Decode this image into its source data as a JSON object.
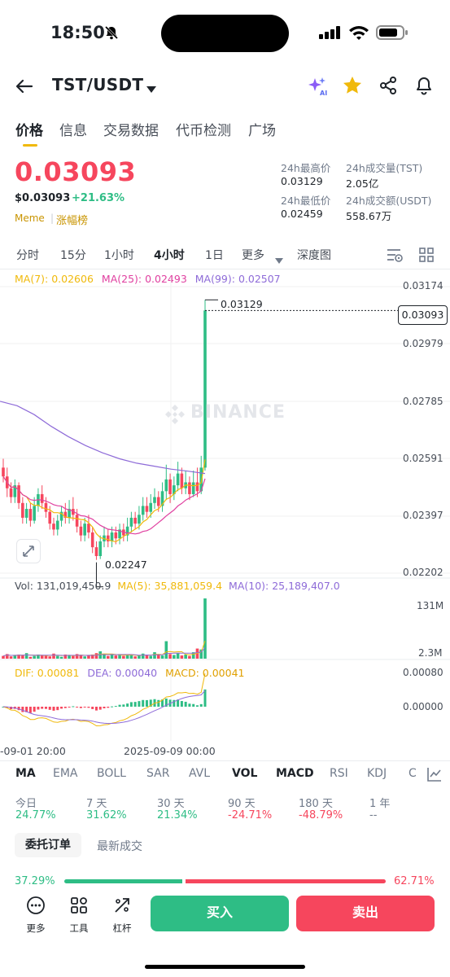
{
  "status_bar": {
    "time": "18:50"
  },
  "header": {
    "pair": "TST/USDT"
  },
  "tabs": [
    {
      "label": "价格"
    },
    {
      "label": "信息"
    },
    {
      "label": "交易数据"
    },
    {
      "label": "代币检测"
    },
    {
      "label": "广场"
    }
  ],
  "price": {
    "last": "0.03093",
    "usd": "$0.03093",
    "change": "+21.63%",
    "tag1": "Meme",
    "tag2": "涨幅榜"
  },
  "stats": {
    "high_label": "24h最高价",
    "high": "0.03129",
    "low_label": "24h最低价",
    "low": "0.02459",
    "vol_label": "24h成交量(TST)",
    "vol": "2.05亿",
    "amount_label": "24h成交额(USDT)",
    "amount": "558.67万"
  },
  "intervals": [
    {
      "label": "分时"
    },
    {
      "label": "15分"
    },
    {
      "label": "1小时"
    },
    {
      "label": "4小时"
    },
    {
      "label": "1日"
    },
    {
      "label": "更多"
    },
    {
      "label": "深度图"
    }
  ],
  "chart": {
    "ma7": "MA(7): 0.02606",
    "ma25": "MA(25): 0.02493",
    "ma99": "MA(99): 0.02507",
    "y_labels": [
      "0.03174",
      "0.02979",
      "0.02785",
      "0.02591",
      "0.02397",
      "0.02202"
    ],
    "current_price_tag": "0.03093",
    "high_marker": "0.03129",
    "low_marker": "0.02247",
    "watermark": "BINANCE",
    "vol_text": "Vol: 131,019,450.9",
    "vol_ma5": "MA(5): 35,881,059.4",
    "vol_ma10": "MA(10): 25,189,407.0",
    "vol_y_max": "131M",
    "vol_y_min": "2.3M",
    "dif": "DIF: 0.00081",
    "dea": "DEA: 0.00040",
    "macd": "MACD: 0.00041",
    "macd_y_max": "0.00080",
    "macd_y_zero": "0.00000",
    "x_labels": [
      "-09-01 20:00",
      "2025-09-09 00:00"
    ]
  },
  "indicators": [
    {
      "label": "MA"
    },
    {
      "label": "EMA"
    },
    {
      "label": "BOLL"
    },
    {
      "label": "SAR"
    },
    {
      "label": "AVL"
    },
    {
      "label": "VOL"
    },
    {
      "label": "MACD"
    },
    {
      "label": "RSI"
    },
    {
      "label": "KDJ"
    },
    {
      "label": "C"
    }
  ],
  "performance": [
    {
      "label": "今日",
      "value": "24.77%"
    },
    {
      "label": "7 天",
      "value": "31.62%"
    },
    {
      "label": "30 天",
      "value": "21.34%"
    },
    {
      "label": "90 天",
      "value": "-24.71%"
    },
    {
      "label": "180 天",
      "value": "-48.79%"
    },
    {
      "label": "1 年",
      "value": "--"
    }
  ],
  "order_tabs": {
    "active": "委托订单",
    "other": "最新成交"
  },
  "order_ratio": {
    "buy": "37.29%",
    "sell": "62.71%",
    "buy_fraction": 0.3729
  },
  "bottom_bar": {
    "more": "更多",
    "tools": "工具",
    "leverage": "杠杆",
    "buy": "买入",
    "sell": "卖出"
  },
  "colors": {
    "up": "#2ebd85",
    "down": "#f6465d",
    "accent": "#f0b90b"
  },
  "candles": [
    [
      0.0256,
      0.0253,
      0.0259,
      0.0251
    ],
    [
      0.0253,
      0.0249,
      0.0256,
      0.0246
    ],
    [
      0.0249,
      0.0246,
      0.0251,
      0.0244
    ],
    [
      0.0246,
      0.025,
      0.0252,
      0.0244
    ],
    [
      0.025,
      0.0244,
      0.0251,
      0.0242
    ],
    [
      0.0244,
      0.0239,
      0.0246,
      0.0237
    ],
    [
      0.0239,
      0.0242,
      0.0244,
      0.0237
    ],
    [
      0.0242,
      0.0238,
      0.0244,
      0.0236
    ],
    [
      0.0238,
      0.0243,
      0.0246,
      0.0237
    ],
    [
      0.0243,
      0.0247,
      0.0249,
      0.0241
    ],
    [
      0.0247,
      0.0244,
      0.025,
      0.0242
    ],
    [
      0.0244,
      0.0241,
      0.0246,
      0.0239
    ],
    [
      0.0241,
      0.0237,
      0.0243,
      0.0235
    ],
    [
      0.0237,
      0.0235,
      0.0239,
      0.0233
    ],
    [
      0.0235,
      0.0238,
      0.024,
      0.0233
    ],
    [
      0.0238,
      0.0241,
      0.0243,
      0.0236
    ],
    [
      0.0241,
      0.0239,
      0.0244,
      0.0237
    ],
    [
      0.0239,
      0.0242,
      0.0245,
      0.0237
    ],
    [
      0.0242,
      0.024,
      0.0246,
      0.0238
    ],
    [
      0.024,
      0.0236,
      0.0242,
      0.0234
    ],
    [
      0.0236,
      0.0233,
      0.0238,
      0.0231
    ],
    [
      0.0233,
      0.0237,
      0.0239,
      0.0231
    ],
    [
      0.0237,
      0.0234,
      0.024,
      0.0232
    ],
    [
      0.0234,
      0.0229,
      0.0236,
      0.0227
    ],
    [
      0.0229,
      0.0226,
      0.0231,
      0.02247
    ],
    [
      0.0226,
      0.0231,
      0.0233,
      0.0225
    ],
    [
      0.0231,
      0.0233,
      0.0236,
      0.0229
    ],
    [
      0.0233,
      0.0231,
      0.0235,
      0.0229
    ],
    [
      0.0231,
      0.0234,
      0.0236,
      0.0229
    ],
    [
      0.0234,
      0.0232,
      0.0236,
      0.023
    ],
    [
      0.0232,
      0.0235,
      0.0237,
      0.023
    ],
    [
      0.0235,
      0.0233,
      0.0237,
      0.0231
    ],
    [
      0.0233,
      0.0236,
      0.0239,
      0.0231
    ],
    [
      0.0236,
      0.0239,
      0.0241,
      0.0234
    ],
    [
      0.0239,
      0.0237,
      0.0241,
      0.0235
    ],
    [
      0.0237,
      0.024,
      0.0243,
      0.0235
    ],
    [
      0.024,
      0.0243,
      0.0246,
      0.0238
    ],
    [
      0.0243,
      0.0241,
      0.0246,
      0.0239
    ],
    [
      0.0241,
      0.0244,
      0.0247,
      0.0239
    ],
    [
      0.0244,
      0.0246,
      0.0249,
      0.0242
    ],
    [
      0.0246,
      0.0243,
      0.0248,
      0.0241
    ],
    [
      0.0243,
      0.0248,
      0.0251,
      0.0241
    ],
    [
      0.0248,
      0.0252,
      0.0257,
      0.0245
    ],
    [
      0.0252,
      0.0247,
      0.0254,
      0.0244
    ],
    [
      0.0247,
      0.025,
      0.0253,
      0.0245
    ],
    [
      0.025,
      0.0254,
      0.0258,
      0.0248
    ],
    [
      0.0254,
      0.0249,
      0.0256,
      0.0247
    ],
    [
      0.0249,
      0.0251,
      0.0255,
      0.0247
    ],
    [
      0.0251,
      0.0247,
      0.0253,
      0.0245
    ],
    [
      0.0247,
      0.0251,
      0.0255,
      0.0246
    ],
    [
      0.0251,
      0.0248,
      0.0256,
      0.0246
    ],
    [
      0.0248,
      0.0256,
      0.026,
      0.0247
    ],
    [
      0.0256,
      0.03093,
      0.03129,
      0.0255
    ]
  ],
  "volumes": [
    6,
    10,
    5,
    8,
    9,
    7,
    12,
    4,
    6,
    9,
    7,
    8,
    5,
    11,
    6,
    4,
    9,
    7,
    6,
    10,
    8,
    5,
    7,
    9,
    12,
    16,
    8,
    6,
    9,
    7,
    10,
    6,
    8,
    9,
    5,
    7,
    11,
    8,
    6,
    14,
    9,
    7,
    38,
    10,
    8,
    12,
    7,
    9,
    6,
    14,
    22,
    20,
    131
  ]
}
